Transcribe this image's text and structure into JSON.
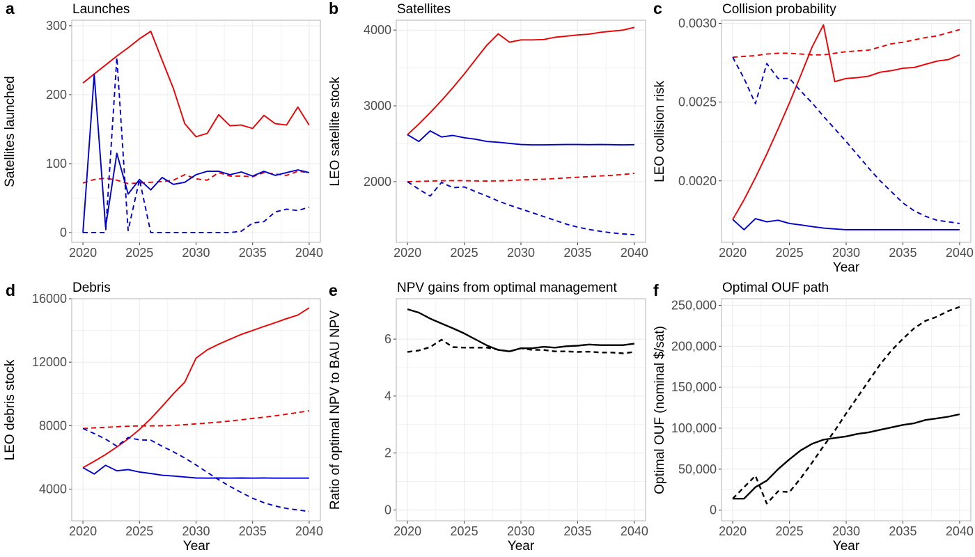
{
  "colors": {
    "optimal": "#ee0000",
    "bau": "#0000cc",
    "neutral": "#000000",
    "grid": "#ebebeb",
    "frame": "#b3b3b3"
  },
  "chart_data": [
    {
      "letter": "a",
      "title": "Launches",
      "type": "line",
      "xlabel": "",
      "ylabel": "Satellites launched",
      "xlim": [
        2020,
        2040
      ],
      "ylim": [
        -14,
        308
      ],
      "xticks": [
        2020,
        2025,
        2030,
        2035,
        2040
      ],
      "yticks": [
        0,
        100,
        200,
        300
      ],
      "yticklabels": [
        "0",
        "100",
        "200",
        "300"
      ],
      "x": [
        2020,
        2021,
        2022,
        2023,
        2024,
        2025,
        2026,
        2027,
        2028,
        2029,
        2030,
        2031,
        2032,
        2033,
        2034,
        2035,
        2036,
        2037,
        2038,
        2039,
        2040
      ],
      "series": [
        {
          "color": "red",
          "dash": false,
          "values": [
            217,
            230,
            243,
            256,
            268,
            281,
            292,
            250,
            209,
            158,
            139,
            144,
            171,
            155,
            156,
            151,
            170,
            158,
            156,
            182,
            156
          ]
        },
        {
          "color": "red",
          "dash": true,
          "values": [
            72,
            77,
            79,
            76,
            71,
            72,
            73,
            74,
            76,
            84,
            78,
            76,
            87,
            82,
            82,
            81,
            87,
            85,
            83,
            89,
            87
          ]
        },
        {
          "color": "blue",
          "dash": false,
          "values": [
            0,
            229,
            8,
            115,
            56,
            77,
            62,
            80,
            70,
            73,
            84,
            89,
            89,
            84,
            88,
            82,
            89,
            83,
            87,
            91,
            87
          ]
        },
        {
          "color": "blue",
          "dash": true,
          "values": [
            0,
            0,
            0,
            254,
            3,
            77,
            0,
            0,
            0,
            0,
            0,
            0,
            0,
            0,
            2,
            14,
            16,
            30,
            34,
            32,
            37
          ]
        }
      ]
    },
    {
      "letter": "b",
      "title": "Satellites",
      "type": "line",
      "xlabel": "",
      "ylabel": "LEO satellite stock",
      "xlim": [
        2020,
        2040
      ],
      "ylim": [
        1200,
        4130
      ],
      "xticks": [
        2020,
        2025,
        2030,
        2035,
        2040
      ],
      "yticks": [
        2000,
        3000,
        4000
      ],
      "yticklabels": [
        "2000",
        "3000",
        "4000"
      ],
      "x": [
        2020,
        2021,
        2022,
        2023,
        2024,
        2025,
        2026,
        2027,
        2028,
        2029,
        2030,
        2031,
        2032,
        2033,
        2034,
        2035,
        2036,
        2037,
        2038,
        2039,
        2040
      ],
      "series": [
        {
          "color": "red",
          "dash": false,
          "values": [
            2620,
            2760,
            2910,
            3070,
            3240,
            3420,
            3610,
            3800,
            3950,
            3840,
            3870,
            3870,
            3875,
            3905,
            3920,
            3935,
            3945,
            3970,
            3985,
            4000,
            4035
          ]
        },
        {
          "color": "red",
          "dash": true,
          "values": [
            2000,
            2003,
            2008,
            2012,
            2014,
            2013,
            2010,
            2008,
            2010,
            2015,
            2023,
            2028,
            2032,
            2040,
            2050,
            2058,
            2066,
            2075,
            2083,
            2095,
            2110
          ]
        },
        {
          "color": "blue",
          "dash": false,
          "values": [
            2620,
            2530,
            2670,
            2590,
            2610,
            2580,
            2560,
            2530,
            2520,
            2505,
            2490,
            2485,
            2485,
            2488,
            2490,
            2490,
            2488,
            2490,
            2488,
            2485,
            2488
          ]
        },
        {
          "color": "blue",
          "dash": true,
          "values": [
            2000,
            1900,
            1810,
            1990,
            1920,
            1930,
            1870,
            1810,
            1745,
            1690,
            1640,
            1590,
            1540,
            1490,
            1440,
            1400,
            1370,
            1345,
            1325,
            1310,
            1300
          ]
        }
      ]
    },
    {
      "letter": "c",
      "title": "Collision probability",
      "type": "line",
      "xlabel": "Year",
      "ylabel": "LEO collision risk",
      "xlim": [
        2020,
        2040
      ],
      "ylim": [
        0.00161,
        0.00302
      ],
      "xticks": [
        2020,
        2025,
        2030,
        2035,
        2040
      ],
      "yticks": [
        0.002,
        0.0025,
        0.003
      ],
      "yticklabels": [
        "0.0020",
        "0.0025",
        "0.0030"
      ],
      "x": [
        2020,
        2021,
        2022,
        2023,
        2024,
        2025,
        2026,
        2027,
        2028,
        2029,
        2030,
        2031,
        2032,
        2033,
        2034,
        2035,
        2036,
        2037,
        2038,
        2039,
        2040
      ],
      "series": [
        {
          "color": "red",
          "dash": false,
          "values": [
            0.001755,
            0.00188,
            0.00202,
            0.00217,
            0.00233,
            0.002495,
            0.00267,
            0.00285,
            0.00299,
            0.00263,
            0.00265,
            0.002655,
            0.002665,
            0.00269,
            0.0027,
            0.002715,
            0.00272,
            0.00274,
            0.00276,
            0.00277,
            0.0028
          ]
        },
        {
          "color": "red",
          "dash": true,
          "values": [
            0.002785,
            0.00279,
            0.002795,
            0.002805,
            0.00281,
            0.00281,
            0.002805,
            0.0028,
            0.0028,
            0.00281,
            0.00282,
            0.002825,
            0.00283,
            0.00285,
            0.00287,
            0.00288,
            0.002895,
            0.00291,
            0.00292,
            0.00294,
            0.00296
          ]
        },
        {
          "color": "blue",
          "dash": false,
          "values": [
            0.001755,
            0.00169,
            0.00176,
            0.00174,
            0.00175,
            0.00173,
            0.00172,
            0.00171,
            0.0017,
            0.001695,
            0.00169,
            0.00169,
            0.00169,
            0.00169,
            0.00169,
            0.00169,
            0.00169,
            0.00169,
            0.00169,
            0.00169,
            0.00169
          ]
        },
        {
          "color": "blue",
          "dash": true,
          "values": [
            0.002785,
            0.00265,
            0.00249,
            0.002745,
            0.00265,
            0.00265,
            0.00257,
            0.002495,
            0.00241,
            0.00233,
            0.00225,
            0.002165,
            0.00208,
            0.002,
            0.00193,
            0.00186,
            0.00181,
            0.001775,
            0.00175,
            0.00174,
            0.00173
          ]
        }
      ]
    },
    {
      "letter": "d",
      "title": "Debris",
      "type": "line",
      "xlabel": "Year",
      "ylabel": "LEO debris stock",
      "xlim": [
        2020,
        2040
      ],
      "ylim": [
        2000,
        16000
      ],
      "xticks": [
        2020,
        2025,
        2030,
        2035,
        2040
      ],
      "yticks": [
        4000,
        8000,
        12000,
        16000
      ],
      "yticklabels": [
        "4000",
        "8000",
        "12000",
        "16000"
      ],
      "x": [
        2020,
        2021,
        2022,
        2023,
        2024,
        2025,
        2026,
        2027,
        2028,
        2029,
        2030,
        2031,
        2032,
        2033,
        2034,
        2035,
        2036,
        2037,
        2038,
        2039,
        2040
      ],
      "series": [
        {
          "color": "red",
          "dash": false,
          "values": [
            5350,
            5750,
            6180,
            6650,
            7160,
            7760,
            8440,
            9210,
            10010,
            10740,
            12250,
            12780,
            13130,
            13440,
            13750,
            14000,
            14250,
            14490,
            14740,
            14970,
            15420
          ]
        },
        {
          "color": "red",
          "dash": true,
          "values": [
            7820,
            7860,
            7890,
            7930,
            7960,
            7980,
            7980,
            7990,
            8010,
            8060,
            8110,
            8160,
            8220,
            8290,
            8370,
            8450,
            8530,
            8620,
            8720,
            8820,
            8940
          ]
        },
        {
          "color": "blue",
          "dash": false,
          "values": [
            5350,
            4950,
            5500,
            5150,
            5230,
            5070,
            4980,
            4870,
            4820,
            4760,
            4700,
            4690,
            4700,
            4690,
            4700,
            4690,
            4700,
            4690,
            4690,
            4690,
            4690
          ]
        },
        {
          "color": "blue",
          "dash": true,
          "values": [
            7820,
            7500,
            7150,
            6700,
            7250,
            7100,
            7080,
            6700,
            6350,
            5960,
            5520,
            5050,
            4590,
            4170,
            3780,
            3420,
            3140,
            2930,
            2780,
            2680,
            2590
          ]
        }
      ]
    },
    {
      "letter": "e",
      "title": "NPV gains from optimal management",
      "type": "line",
      "xlabel": "Year",
      "ylabel": "Ratio of optimal NPV to BAU NPV",
      "xlim": [
        2020,
        2040
      ],
      "ylim": [
        -0.38,
        7.42
      ],
      "xticks": [
        2020,
        2025,
        2030,
        2035,
        2040
      ],
      "yticks": [
        0,
        2,
        4,
        6
      ],
      "yticklabels": [
        "0",
        "2",
        "4",
        "6"
      ],
      "x": [
        2020,
        2021,
        2022,
        2023,
        2024,
        2025,
        2026,
        2027,
        2028,
        2029,
        2030,
        2031,
        2032,
        2033,
        2034,
        2035,
        2036,
        2037,
        2038,
        2039,
        2040
      ],
      "series": [
        {
          "color": "black",
          "dash": false,
          "values": [
            7.05,
            6.93,
            6.72,
            6.55,
            6.38,
            6.2,
            5.99,
            5.78,
            5.62,
            5.57,
            5.68,
            5.68,
            5.73,
            5.7,
            5.75,
            5.77,
            5.81,
            5.79,
            5.79,
            5.79,
            5.84
          ]
        },
        {
          "color": "black",
          "dash": true,
          "values": [
            5.55,
            5.6,
            5.72,
            5.98,
            5.72,
            5.7,
            5.7,
            5.7,
            5.63,
            5.57,
            5.68,
            5.62,
            5.62,
            5.57,
            5.57,
            5.55,
            5.56,
            5.53,
            5.53,
            5.5,
            5.55
          ]
        }
      ]
    },
    {
      "letter": "f",
      "title": "Optimal OUF path",
      "type": "line",
      "xlabel": "Year",
      "ylabel": "Optimal OUF (nominal $/sat)",
      "xlim": [
        2020,
        2040
      ],
      "ylim": [
        -13000,
        258000
      ],
      "xticks": [
        2020,
        2025,
        2030,
        2035,
        2040
      ],
      "yticks": [
        0,
        50000,
        100000,
        150000,
        200000,
        250000
      ],
      "yticklabels": [
        "0",
        "50,000",
        "100,000",
        "150,000",
        "200,000",
        "250,000"
      ],
      "x": [
        2020,
        2021,
        2022,
        2023,
        2024,
        2025,
        2026,
        2027,
        2028,
        2029,
        2030,
        2031,
        2032,
        2033,
        2034,
        2035,
        2036,
        2037,
        2038,
        2039,
        2040
      ],
      "series": [
        {
          "color": "black",
          "dash": false,
          "values": [
            14000,
            14000,
            28000,
            36000,
            50000,
            62000,
            73000,
            81000,
            86000,
            88000,
            90000,
            93000,
            95000,
            98000,
            101000,
            104000,
            106000,
            110000,
            112000,
            114000,
            117000
          ]
        },
        {
          "color": "black",
          "dash": true,
          "values": [
            14000,
            28000,
            42000,
            8000,
            23000,
            22000,
            39000,
            58000,
            78000,
            97000,
            118000,
            138000,
            158000,
            178000,
            195000,
            209000,
            222000,
            231000,
            236000,
            243000,
            248000
          ]
        }
      ]
    }
  ]
}
